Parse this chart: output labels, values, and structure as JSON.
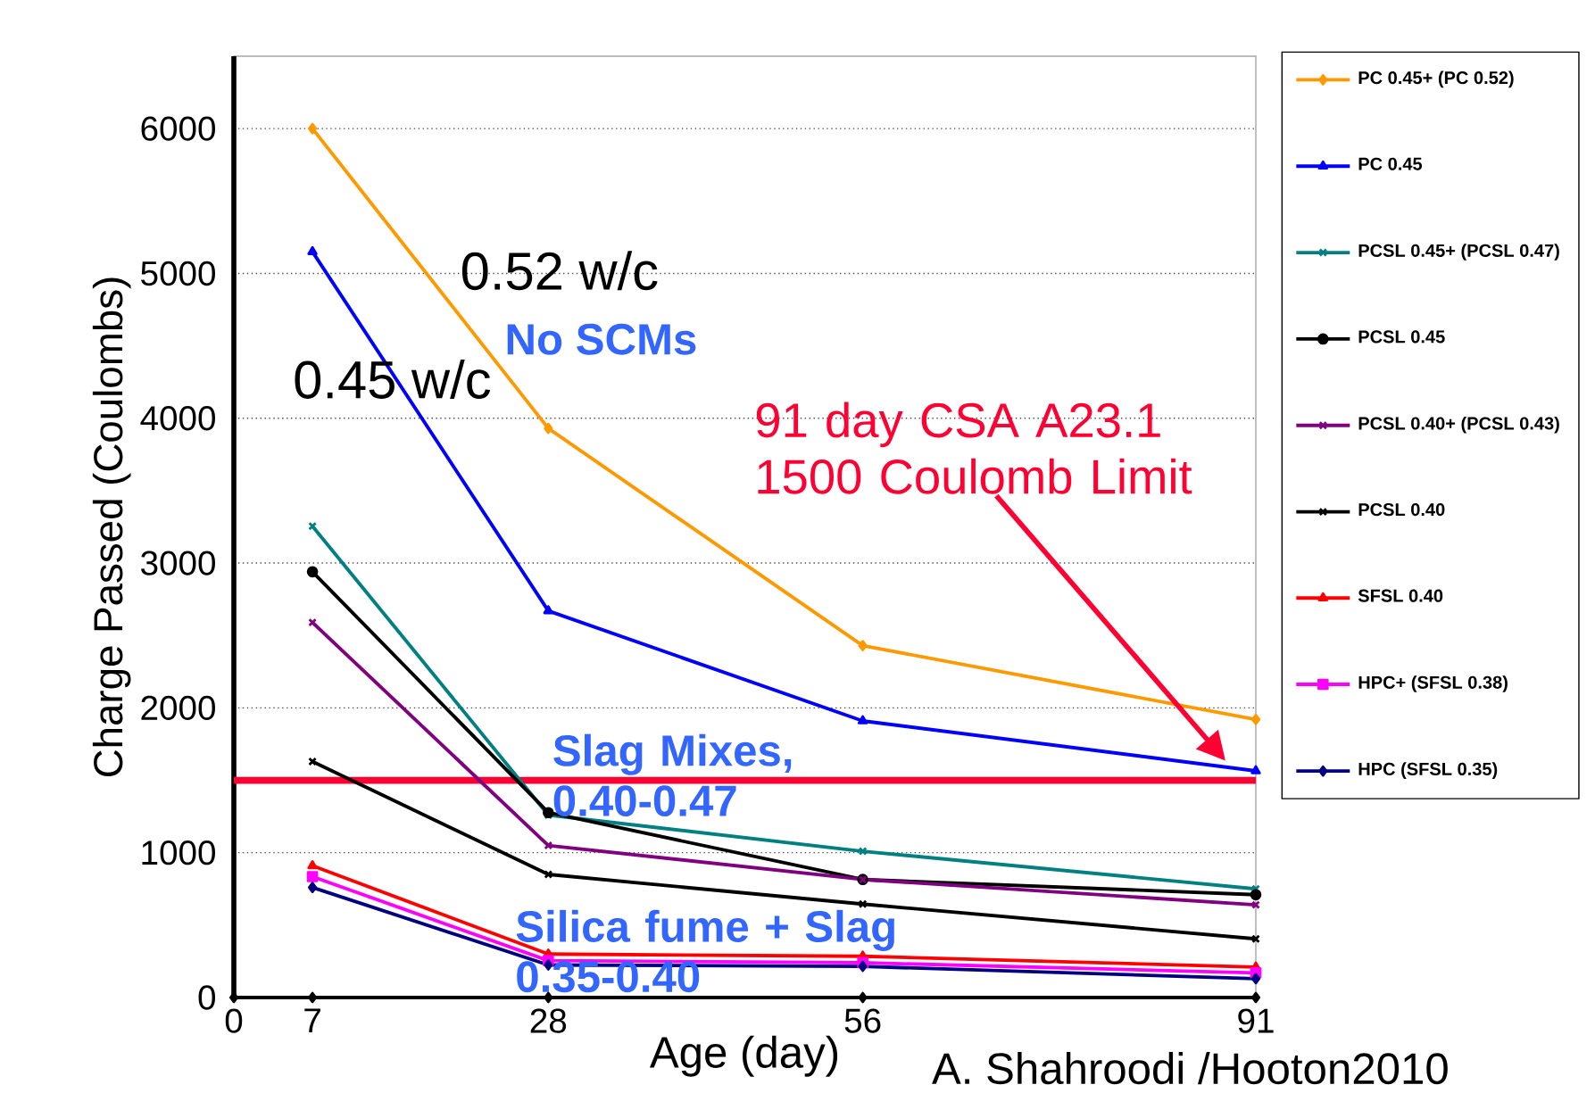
{
  "chart_data": {
    "type": "line",
    "xlabel": "Age (day)",
    "ylabel": "Charge Passed (Coulombs)",
    "x": [
      7,
      28,
      56,
      91
    ],
    "xlim": [
      0,
      91
    ],
    "xticks": [
      0,
      7,
      28,
      56,
      91
    ],
    "ylim": [
      0,
      6500
    ],
    "yticks": [
      0,
      1000,
      2000,
      3000,
      4000,
      5000,
      6000
    ],
    "grid": "y",
    "legend": "right",
    "line_style": "solid",
    "series": [
      {
        "name": "PC 0.45+ (PC 0.52)",
        "color": "#ff9900",
        "marker": "diamond",
        "values": [
          6000,
          3930,
          2430,
          1920
        ]
      },
      {
        "name": "PC 0.45",
        "color": "#0000ff",
        "marker": "triangle",
        "values": [
          5150,
          2670,
          1910,
          1565
        ]
      },
      {
        "name": "PCSL 0.45+ (PCSL 0.47)",
        "color": "#008080",
        "marker": "cross",
        "values": [
          3255,
          1260,
          1010,
          750
        ]
      },
      {
        "name": "PCSL 0.45",
        "color": "#000000",
        "marker": "circle",
        "values": [
          2940,
          1277,
          815,
          710
        ]
      },
      {
        "name": "PCSL 0.40+ (PCSL 0.43)",
        "color": "#800080",
        "marker": "cross",
        "values": [
          2590,
          1050,
          815,
          640
        ]
      },
      {
        "name": "PCSL 0.40",
        "color": "#000000",
        "marker": "cross",
        "values": [
          1630,
          850,
          645,
          405
        ]
      },
      {
        "name": "SFSL 0.40",
        "color": "#ff0000",
        "marker": "triangle",
        "values": [
          910,
          300,
          285,
          210
        ]
      },
      {
        "name": "HPC+ (SFSL 0.38)",
        "color": "#ff00ff",
        "marker": "square",
        "values": [
          835,
          255,
          240,
          170
        ]
      },
      {
        "name": "HPC (SFSL 0.35)",
        "color": "#000080",
        "marker": "diamond",
        "values": [
          760,
          225,
          215,
          130
        ]
      },
      {
        "color": "#000000",
        "marker": "diamond",
        "x": [
          0,
          7,
          28,
          56,
          91
        ],
        "values": [
          0,
          0,
          0,
          0,
          0
        ]
      }
    ],
    "ref_lines": [
      {
        "axis": "y",
        "value": 1500,
        "color": "#ff0033"
      }
    ],
    "annotations": [
      "0.52 w/c",
      "No SCMs",
      "0.45 w/c",
      "91 day CSA A23.1 1500 Coulomb Limit",
      "Slag Mixes, 0.40-0.47",
      "Silica fume + Slag 0.35-0.40",
      "A. Shahroodi /Hooton2010"
    ]
  }
}
